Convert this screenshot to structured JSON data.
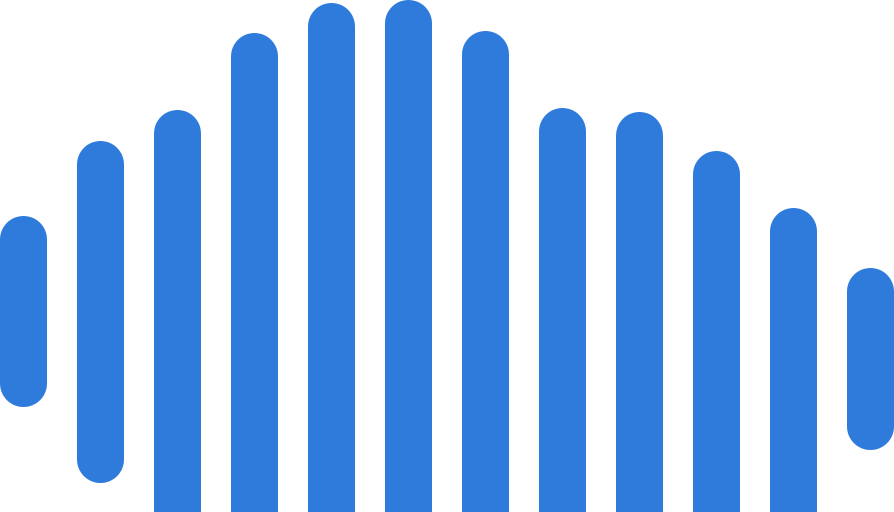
{
  "logo": {
    "icon": "audio-waveform-icon",
    "color": "#2F7BDB"
  }
}
